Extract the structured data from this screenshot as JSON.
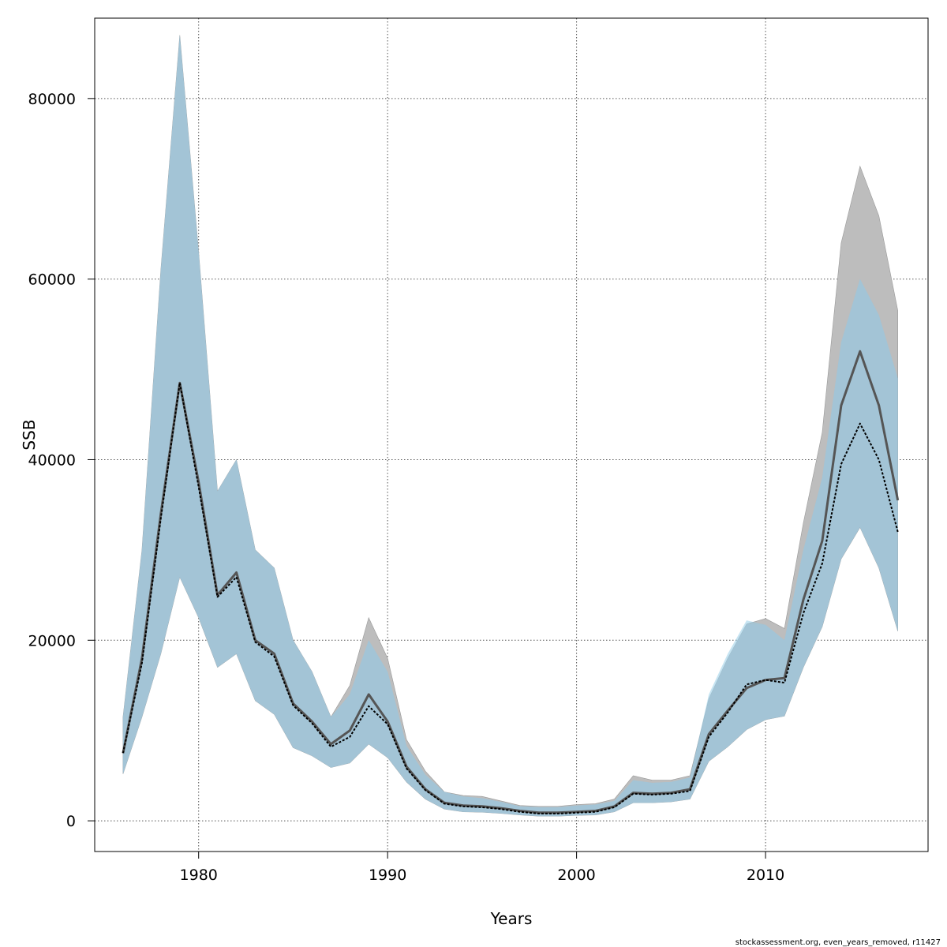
{
  "chart_data": {
    "type": "area",
    "title": "",
    "xlabel": "Years",
    "ylabel": "SSB",
    "xlim": [
      1974.5,
      2018.6
    ],
    "ylim": [
      -3400,
      88900
    ],
    "xticks": [
      1980,
      1990,
      2000,
      2010
    ],
    "yticks": [
      0,
      20000,
      40000,
      60000,
      80000
    ],
    "grid": true,
    "legend": "none",
    "footnote": "stockassessment.org, even_years_removed, r11427",
    "colors": {
      "band_a": "#bdbdbd",
      "band_b": "#8ecae6",
      "overlap": "#a3c4d6",
      "line_a": "#555555",
      "line_b": "#000000"
    },
    "years": [
      1976,
      1977,
      1978,
      1979,
      1980,
      1981,
      1982,
      1983,
      1984,
      1985,
      1986,
      1987,
      1988,
      1989,
      1990,
      1991,
      1992,
      1993,
      1994,
      1995,
      1996,
      1997,
      1998,
      1999,
      2000,
      2001,
      2002,
      2003,
      2004,
      2005,
      2006,
      2007,
      2008,
      2009,
      2010,
      2011,
      2012,
      2013,
      2014,
      2015,
      2016,
      2017
    ],
    "series": [
      {
        "median": [
          7500,
          18000,
          34000,
          48500,
          37500,
          25000,
          27500,
          20000,
          18500,
          13000,
          11000,
          8500,
          10000,
          14000,
          11000,
          6000,
          3500,
          2000,
          1700,
          1600,
          1400,
          1100,
          900,
          900,
          1000,
          1100,
          1600,
          3100,
          3000,
          3100,
          3500,
          9600,
          12200,
          14700,
          15600,
          15800,
          24500,
          31000,
          46000,
          52000,
          46000,
          35500
        ],
        "lower": [
          5200,
          11500,
          18500,
          27000,
          22500,
          17000,
          18500,
          13300,
          11800,
          8100,
          7200,
          5900,
          6400,
          8500,
          7000,
          4300,
          2400,
          1300,
          1000,
          950,
          820,
          650,
          520,
          520,
          600,
          650,
          1000,
          2000,
          2000,
          2100,
          2400,
          6600,
          8200,
          10100,
          11200,
          11600,
          17000,
          21500,
          29000,
          32500,
          28000,
          21000
        ],
        "upper": [
          11500,
          30000,
          61000,
          87000,
          63000,
          36500,
          40000,
          30000,
          28000,
          20000,
          16500,
          11500,
          15000,
          22500,
          18000,
          9000,
          5500,
          3200,
          2800,
          2700,
          2200,
          1700,
          1600,
          1600,
          1800,
          1900,
          2400,
          5000,
          4500,
          4500,
          5000,
          13500,
          18000,
          21800,
          22400,
          21300,
          33000,
          43000,
          64000,
          72500,
          67000,
          56500
        ]
      },
      {
        "median": [
          7500,
          17500,
          33500,
          48500,
          37000,
          24800,
          27000,
          19800,
          18200,
          12800,
          10800,
          8200,
          9300,
          12700,
          10700,
          5800,
          3400,
          1900,
          1600,
          1500,
          1300,
          1000,
          800,
          800,
          900,
          1000,
          1500,
          3000,
          2900,
          3000,
          3300,
          9300,
          12000,
          15100,
          15600,
          15300,
          23000,
          28500,
          39500,
          44000,
          40000,
          32000
        ],
        "lower": [
          5200,
          11500,
          18500,
          27000,
          22500,
          17000,
          18500,
          13300,
          11800,
          8100,
          7200,
          5900,
          6400,
          8500,
          7000,
          4300,
          2400,
          1300,
          1000,
          950,
          820,
          650,
          520,
          520,
          600,
          650,
          1000,
          2000,
          2000,
          2100,
          2400,
          6600,
          8200,
          10100,
          11200,
          11600,
          17000,
          21500,
          29000,
          32500,
          28000,
          21000
        ],
        "upper": [
          11500,
          30000,
          61000,
          87000,
          63000,
          36500,
          40000,
          30000,
          28000,
          20000,
          16500,
          11500,
          14000,
          20000,
          16500,
          8300,
          5100,
          3200,
          2700,
          2500,
          2100,
          1600,
          1500,
          1500,
          1700,
          1800,
          2200,
          4500,
          4200,
          4300,
          4800,
          14000,
          18500,
          22200,
          21700,
          20000,
          30000,
          38000,
          53000,
          60000,
          56000,
          49000
        ]
      }
    ]
  }
}
